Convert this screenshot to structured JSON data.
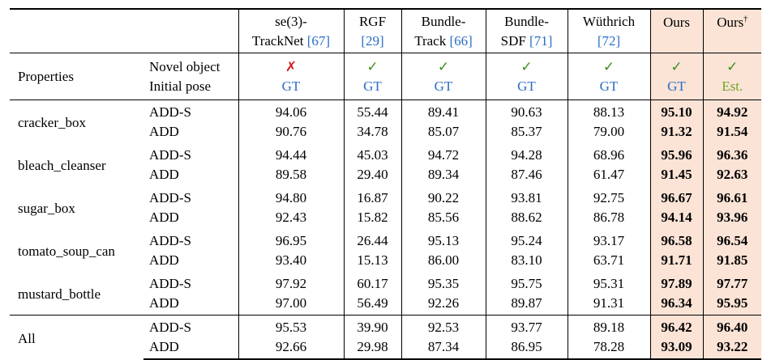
{
  "header": {
    "methods": [
      {
        "line1": "se(3)-",
        "line2": "TrackNet",
        "cite": "[67]"
      },
      {
        "line1": "RGF",
        "line2": "",
        "cite": "[29]"
      },
      {
        "line1": "Bundle-",
        "line2": "Track",
        "cite": "[66]"
      },
      {
        "line1": "Bundle-",
        "line2": "SDF",
        "cite": "[71]"
      },
      {
        "line1": "Wüthrich",
        "line2": "",
        "cite": "[72]"
      },
      {
        "line1": "Ours",
        "line2": "",
        "cite": ""
      },
      {
        "line1": "Ours",
        "line2": "",
        "cite": "",
        "sup": "†"
      }
    ],
    "properties_label": "Properties",
    "novel_object_label": "Novel object",
    "initial_pose_label": "Initial pose",
    "novel_object": [
      "✗",
      "✓",
      "✓",
      "✓",
      "✓",
      "✓",
      "✓"
    ],
    "initial_pose": [
      "GT",
      "GT",
      "GT",
      "GT",
      "GT",
      "GT",
      "Est."
    ]
  },
  "groups": [
    {
      "object": "cracker_box",
      "rows": [
        {
          "metric": "ADD-S",
          "values": [
            "94.06",
            "55.44",
            "89.41",
            "90.63",
            "88.13",
            "95.10",
            "94.92"
          ]
        },
        {
          "metric": "ADD",
          "values": [
            "90.76",
            "34.78",
            "85.07",
            "85.37",
            "79.00",
            "91.32",
            "91.54"
          ]
        }
      ]
    },
    {
      "object": "bleach_cleanser",
      "rows": [
        {
          "metric": "ADD-S",
          "values": [
            "94.44",
            "45.03",
            "94.72",
            "94.28",
            "68.96",
            "95.96",
            "96.36"
          ]
        },
        {
          "metric": "ADD",
          "values": [
            "89.58",
            "29.40",
            "89.34",
            "87.46",
            "61.47",
            "91.45",
            "92.63"
          ]
        }
      ]
    },
    {
      "object": "sugar_box",
      "rows": [
        {
          "metric": "ADD-S",
          "values": [
            "94.80",
            "16.87",
            "90.22",
            "93.81",
            "92.75",
            "96.67",
            "96.61"
          ]
        },
        {
          "metric": "ADD",
          "values": [
            "92.43",
            "15.82",
            "85.56",
            "88.62",
            "86.78",
            "94.14",
            "93.96"
          ]
        }
      ]
    },
    {
      "object": "tomato_soup_can",
      "rows": [
        {
          "metric": "ADD-S",
          "values": [
            "96.95",
            "26.44",
            "95.13",
            "95.24",
            "93.17",
            "96.58",
            "96.54"
          ]
        },
        {
          "metric": "ADD",
          "values": [
            "93.40",
            "15.13",
            "86.00",
            "83.10",
            "63.71",
            "91.71",
            "91.85"
          ]
        }
      ]
    },
    {
      "object": "mustard_bottle",
      "rows": [
        {
          "metric": "ADD-S",
          "values": [
            "97.92",
            "60.17",
            "95.35",
            "95.75",
            "95.31",
            "97.89",
            "97.77"
          ]
        },
        {
          "metric": "ADD",
          "values": [
            "97.00",
            "56.49",
            "92.26",
            "89.87",
            "91.31",
            "96.34",
            "95.95"
          ]
        }
      ]
    }
  ],
  "summary": {
    "object": "All",
    "rows": [
      {
        "metric": "ADD-S",
        "values": [
          "95.53",
          "39.90",
          "92.53",
          "93.77",
          "89.18",
          "96.42",
          "96.40"
        ]
      },
      {
        "metric": "ADD",
        "values": [
          "92.66",
          "29.98",
          "87.34",
          "86.95",
          "78.28",
          "93.09",
          "93.22"
        ]
      }
    ]
  }
}
